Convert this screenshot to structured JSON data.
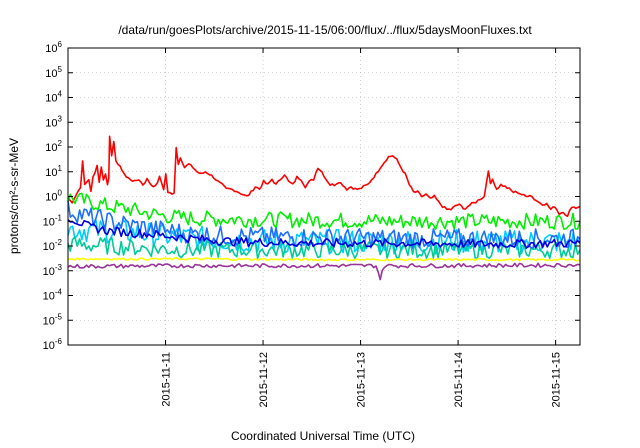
{
  "chart_data": {
    "type": "line",
    "title": "/data/run/goesPlots/archive/2015-11-15/06:00/flux/../flux/5daysMoonFluxes.txt",
    "xlabel": "Coordinated Universal Time (UTC)",
    "ylabel": "protons/cm²-s-sr-MeV",
    "yscale": "log",
    "ylim": [
      1e-06,
      1000000
    ],
    "xlim": [
      "2015-11-10 00:00",
      "2015-11-15 06:00"
    ],
    "x_ticks": [
      "2015-11-11",
      "2015-11-12",
      "2015-11-13",
      "2015-11-14",
      "2015-11-15"
    ],
    "y_ticks": [
      {
        "base": "10",
        "exp": "-6"
      },
      {
        "base": "10",
        "exp": "-5"
      },
      {
        "base": "10",
        "exp": "-4"
      },
      {
        "base": "10",
        "exp": "-3"
      },
      {
        "base": "10",
        "exp": "-2"
      },
      {
        "base": "10",
        "exp": "-1"
      },
      {
        "base": "10",
        "exp": "0"
      },
      {
        "base": "10",
        "exp": "1"
      },
      {
        "base": "10",
        "exp": "2"
      },
      {
        "base": "10",
        "exp": "3"
      },
      {
        "base": "10",
        "exp": "4"
      },
      {
        "base": "10",
        "exp": "5"
      },
      {
        "base": "10",
        "exp": "6"
      }
    ],
    "grid": true,
    "series": [
      {
        "color": "#ff0000",
        "noise": 0.05,
        "points": [
          [
            0,
            0.8
          ],
          [
            0.1,
            0.6
          ],
          [
            0.2,
            1.2
          ],
          [
            0.3,
            2.5
          ],
          [
            0.35,
            25
          ],
          [
            0.4,
            3
          ],
          [
            0.5,
            5
          ],
          [
            0.55,
            1.5
          ],
          [
            0.6,
            6
          ],
          [
            0.7,
            18
          ],
          [
            0.75,
            4
          ],
          [
            0.8,
            15
          ],
          [
            0.85,
            5
          ],
          [
            0.9,
            8
          ],
          [
            0.95,
            3
          ],
          [
            0.98,
            6
          ],
          [
            1.0,
            300
          ],
          [
            1.05,
            40
          ],
          [
            1.1,
            150
          ],
          [
            1.15,
            30
          ],
          [
            1.2,
            20
          ],
          [
            1.3,
            12
          ],
          [
            1.4,
            6
          ],
          [
            1.5,
            5
          ],
          [
            1.6,
            4
          ],
          [
            1.7,
            5
          ],
          [
            1.8,
            3
          ],
          [
            1.9,
            5
          ],
          [
            2.0,
            3
          ],
          [
            2.1,
            2.5
          ],
          [
            2.2,
            6
          ],
          [
            2.3,
            2
          ],
          [
            2.35,
            8
          ],
          [
            2.4,
            1.5
          ],
          [
            2.5,
            1.2
          ],
          [
            2.55,
            1.5
          ],
          [
            2.6,
            100
          ],
          [
            2.65,
            20
          ],
          [
            2.7,
            40
          ],
          [
            2.8,
            15
          ],
          [
            2.9,
            20
          ],
          [
            3.0,
            15
          ],
          [
            3.1,
            10
          ],
          [
            3.2,
            8
          ],
          [
            3.3,
            10
          ],
          [
            3.4,
            8
          ],
          [
            3.5,
            6
          ],
          [
            3.6,
            4
          ],
          [
            3.7,
            3
          ],
          [
            3.8,
            2
          ],
          [
            3.9,
            2
          ],
          [
            4.0,
            1.8
          ],
          [
            4.1,
            1.5
          ],
          [
            4.2,
            1.2
          ],
          [
            4.3,
            1.0
          ],
          [
            4.4,
            1.5
          ],
          [
            4.5,
            2.5
          ],
          [
            4.6,
            2
          ],
          [
            4.7,
            4
          ],
          [
            4.8,
            3
          ],
          [
            4.9,
            5
          ],
          [
            5.0,
            3
          ],
          [
            5.1,
            5
          ],
          [
            5.2,
            8
          ],
          [
            5.3,
            4
          ],
          [
            5.4,
            3
          ],
          [
            5.5,
            6
          ],
          [
            5.6,
            5
          ],
          [
            5.7,
            2.5
          ],
          [
            5.8,
            4
          ],
          [
            5.9,
            5
          ],
          [
            6.0,
            15
          ],
          [
            6.1,
            10
          ],
          [
            6.2,
            5
          ],
          [
            6.3,
            3
          ],
          [
            6.4,
            3
          ],
          [
            6.5,
            4
          ],
          [
            6.6,
            3
          ],
          [
            6.7,
            2
          ],
          [
            6.8,
            2.5
          ],
          [
            6.9,
            2
          ],
          [
            7.0,
            2
          ],
          [
            7.1,
            2.5
          ],
          [
            7.2,
            3
          ],
          [
            7.3,
            5
          ],
          [
            7.4,
            8
          ],
          [
            7.5,
            15
          ],
          [
            7.6,
            25
          ],
          [
            7.7,
            40
          ],
          [
            7.8,
            45
          ],
          [
            7.9,
            30
          ],
          [
            8.0,
            15
          ],
          [
            8.1,
            8
          ],
          [
            8.2,
            3
          ],
          [
            8.3,
            1.5
          ],
          [
            8.4,
            1.5
          ],
          [
            8.5,
            1.0
          ],
          [
            8.6,
            1.2
          ],
          [
            8.7,
            0.8
          ],
          [
            8.8,
            1.0
          ],
          [
            8.9,
            0.6
          ],
          [
            9.0,
            0.4
          ],
          [
            9.1,
            0.3
          ],
          [
            9.2,
            0.3
          ],
          [
            9.3,
            0.4
          ],
          [
            9.4,
            0.5
          ],
          [
            9.5,
            0.3
          ],
          [
            9.6,
            0.4
          ],
          [
            9.7,
            0.5
          ],
          [
            9.8,
            0.6
          ],
          [
            9.9,
            0.8
          ],
          [
            10.0,
            1.0
          ],
          [
            10.1,
            12
          ],
          [
            10.15,
            3
          ],
          [
            10.2,
            5
          ],
          [
            10.3,
            2
          ],
          [
            10.4,
            3
          ],
          [
            10.5,
            2.5
          ],
          [
            10.6,
            2
          ],
          [
            10.7,
            1.5
          ],
          [
            10.8,
            1.5
          ],
          [
            10.9,
            1.2
          ],
          [
            11.0,
            1.0
          ],
          [
            11.1,
            1.2
          ],
          [
            11.2,
            0.8
          ],
          [
            11.3,
            0.6
          ],
          [
            11.4,
            0.5
          ],
          [
            11.5,
            0.5
          ],
          [
            11.6,
            0.3
          ],
          [
            11.7,
            0.4
          ],
          [
            11.8,
            0.2
          ],
          [
            11.9,
            0.25
          ],
          [
            12.0,
            0.15
          ],
          [
            12.05,
            0.25
          ],
          [
            12.1,
            0.4
          ],
          [
            12.2,
            0.35
          ],
          [
            12.3,
            0.4
          ]
        ]
      },
      {
        "color": "#00ee00",
        "noise": 0.32,
        "points": [
          [
            0,
            0.9
          ],
          [
            0.5,
            0.6
          ],
          [
            1.0,
            0.4
          ],
          [
            1.5,
            0.3
          ],
          [
            2.0,
            0.2
          ],
          [
            2.5,
            0.15
          ],
          [
            3.0,
            0.13
          ],
          [
            4.0,
            0.12
          ],
          [
            6.0,
            0.11
          ],
          [
            8.0,
            0.1
          ],
          [
            10.0,
            0.1
          ],
          [
            12.3,
            0.1
          ]
        ]
      },
      {
        "color": "#00ccff",
        "noise": 0.5,
        "points": [
          [
            0,
            0.05
          ],
          [
            1.0,
            0.04
          ],
          [
            2.0,
            0.03
          ],
          [
            3.0,
            0.02
          ],
          [
            5.0,
            0.015
          ],
          [
            8.0,
            0.015
          ],
          [
            10.0,
            0.015
          ],
          [
            12.3,
            0.015
          ]
        ]
      },
      {
        "color": "#00cc99",
        "noise": 0.35,
        "points": [
          [
            0,
            0.012
          ],
          [
            1.0,
            0.01
          ],
          [
            2.0,
            0.008
          ],
          [
            3.0,
            0.007
          ],
          [
            6.0,
            0.007
          ],
          [
            9.0,
            0.007
          ],
          [
            12.3,
            0.007
          ]
        ]
      },
      {
        "color": "#1e6fff",
        "noise": 0.4,
        "points": [
          [
            0,
            0.3
          ],
          [
            0.5,
            0.15
          ],
          [
            1.0,
            0.1
          ],
          [
            1.5,
            0.07
          ],
          [
            2.0,
            0.05
          ],
          [
            2.5,
            0.04
          ],
          [
            3.0,
            0.03
          ],
          [
            4.0,
            0.025
          ],
          [
            6.0,
            0.022
          ],
          [
            8.0,
            0.02
          ],
          [
            10.0,
            0.02
          ],
          [
            12.3,
            0.02
          ]
        ]
      },
      {
        "color": "#0000dd",
        "noise": 0.18,
        "points": [
          [
            0,
            0.15
          ],
          [
            0.5,
            0.06
          ],
          [
            1.0,
            0.04
          ],
          [
            2.0,
            0.03
          ],
          [
            3.0,
            0.02
          ],
          [
            4.0,
            0.015
          ],
          [
            6.0,
            0.013
          ],
          [
            8.0,
            0.013
          ],
          [
            10.0,
            0.012
          ],
          [
            12.3,
            0.013
          ]
        ]
      },
      {
        "color": "#ffff00",
        "noise": 0.04,
        "points": [
          [
            0,
            0.003
          ],
          [
            3.0,
            0.003
          ],
          [
            6.0,
            0.0028
          ],
          [
            9.0,
            0.0028
          ],
          [
            12.3,
            0.0028
          ]
        ]
      },
      {
        "color": "#993399",
        "noise": 0.08,
        "points": [
          [
            0,
            0.0015
          ],
          [
            3.0,
            0.0016
          ],
          [
            6.0,
            0.0016
          ],
          [
            7.4,
            0.0016
          ],
          [
            7.5,
            0.0005
          ],
          [
            7.6,
            0.0016
          ],
          [
            9.0,
            0.0016
          ],
          [
            12.3,
            0.0017
          ]
        ]
      }
    ]
  }
}
